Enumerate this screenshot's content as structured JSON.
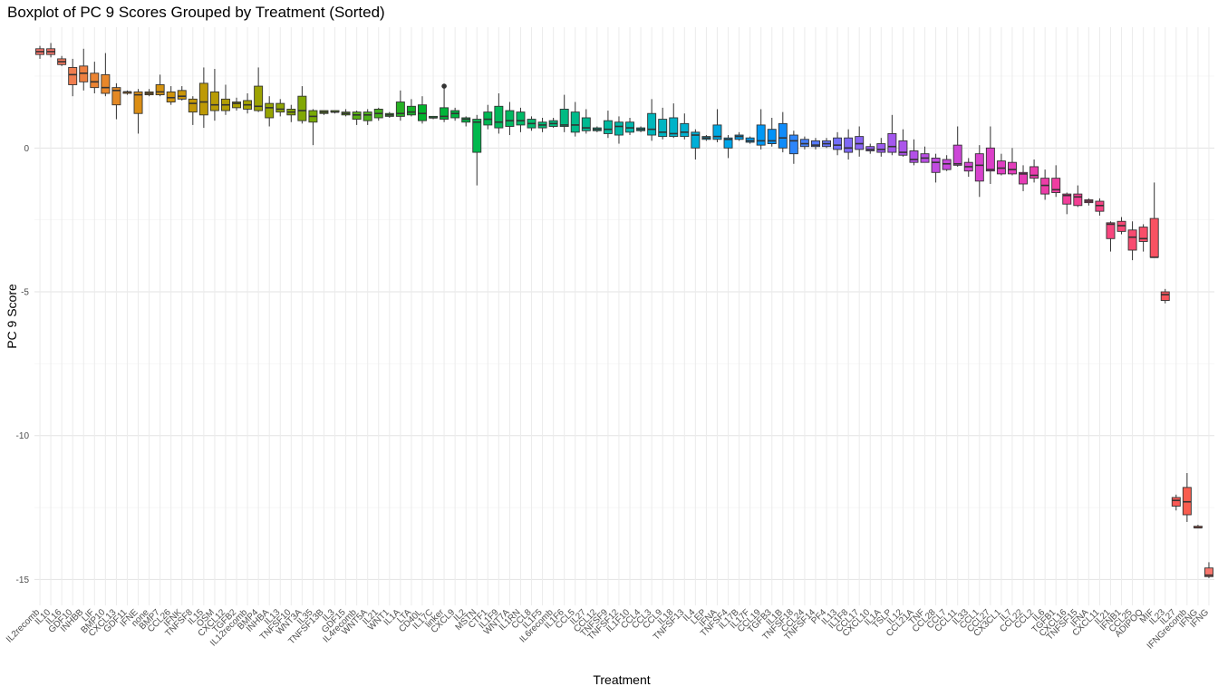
{
  "chart_data": {
    "type": "boxplot",
    "title": "Boxplot of PC 9 Scores Grouped by Treatment (Sorted)",
    "xlabel": "Treatment",
    "ylabel": "PC 9 Score",
    "ylim": [
      -15.9,
      4.2
    ],
    "yticks": [
      -15,
      -10,
      -5,
      0
    ],
    "grid": true,
    "legend": "none",
    "fields": [
      "name",
      "whisker_low",
      "q1",
      "median",
      "q3",
      "whisker_high",
      "color"
    ],
    "boxes": [
      [
        "IL2recomb",
        3.1,
        3.25,
        3.35,
        3.45,
        3.55,
        "#F8766D"
      ],
      [
        "IL10",
        3.15,
        3.25,
        3.35,
        3.45,
        3.65,
        "#F7766A"
      ],
      [
        "IL16",
        2.85,
        2.9,
        3.0,
        3.1,
        3.2,
        "#F47A5F"
      ],
      [
        "GDF10",
        1.8,
        2.2,
        2.55,
        2.8,
        3.1,
        "#F07E50"
      ],
      [
        "INHBB",
        2.0,
        2.3,
        2.6,
        2.85,
        3.45,
        "#EE8041"
      ],
      [
        "LIF",
        1.9,
        2.1,
        2.3,
        2.6,
        3.0,
        "#EC8432"
      ],
      [
        "BMP10",
        1.8,
        1.9,
        2.1,
        2.55,
        3.3,
        "#E8872A"
      ],
      [
        "CXCL13",
        1.0,
        1.5,
        2.0,
        2.1,
        2.25,
        "#E48924"
      ],
      [
        "GDF11",
        1.85,
        1.9,
        1.95,
        1.95,
        2.0,
        "#E08B18"
      ],
      [
        "IFNE",
        0.5,
        1.2,
        1.85,
        1.95,
        2.05,
        "#DB8E14"
      ],
      [
        "none",
        1.8,
        1.85,
        1.9,
        1.95,
        2.05,
        "#D89012"
      ],
      [
        "BMP7",
        1.8,
        1.85,
        1.95,
        2.2,
        2.55,
        "#D49210"
      ],
      [
        "CCL26",
        1.5,
        1.6,
        1.75,
        1.95,
        2.15,
        "#CF940C"
      ],
      [
        "IFNK",
        1.65,
        1.7,
        1.8,
        2.0,
        2.15,
        "#CA960A"
      ],
      [
        "TNFSF8",
        0.8,
        1.25,
        1.55,
        1.7,
        1.8,
        "#C49808"
      ],
      [
        "IL15",
        0.7,
        1.15,
        1.6,
        2.25,
        2.8,
        "#BE9A06"
      ],
      [
        "OSM",
        0.95,
        1.3,
        1.5,
        1.95,
        2.75,
        "#B89C05"
      ],
      [
        "CXCL12",
        1.15,
        1.3,
        1.5,
        1.7,
        2.2,
        "#B29E04"
      ],
      [
        "TGFB2",
        1.3,
        1.4,
        1.55,
        1.6,
        1.75,
        "#ABA003"
      ],
      [
        "IL12recomb",
        1.2,
        1.35,
        1.5,
        1.65,
        1.9,
        "#A4A102"
      ],
      [
        "BMP4",
        1.25,
        1.3,
        1.45,
        2.15,
        2.8,
        "#9DA302"
      ],
      [
        "INHBA",
        0.75,
        1.05,
        1.4,
        1.55,
        1.8,
        "#96A402"
      ],
      [
        "IL13",
        1.1,
        1.25,
        1.35,
        1.55,
        1.7,
        "#8FA603"
      ],
      [
        "TNFSF10",
        0.9,
        1.15,
        1.25,
        1.35,
        1.5,
        "#88A704"
      ],
      [
        "WNT3A",
        0.85,
        0.95,
        1.3,
        1.8,
        2.15,
        "#81A805"
      ],
      [
        "IL35",
        0.1,
        0.9,
        1.1,
        1.3,
        1.35,
        "#79AA07"
      ],
      [
        "TNFSF13B",
        1.15,
        1.2,
        1.25,
        1.3,
        1.3,
        "#71AB09"
      ],
      [
        "IL3",
        1.2,
        1.25,
        1.25,
        1.3,
        1.3,
        "#69AC0C"
      ],
      [
        "GDF15",
        1.1,
        1.15,
        1.2,
        1.25,
        1.35,
        "#60AD10"
      ],
      [
        "IL4recomb",
        0.8,
        1.0,
        1.15,
        1.25,
        1.3,
        "#57AE14"
      ],
      [
        "WNT5A",
        0.8,
        0.95,
        1.15,
        1.25,
        1.35,
        "#4DAF18"
      ],
      [
        "IL21",
        0.95,
        1.05,
        1.2,
        1.35,
        1.4,
        "#42B01C"
      ],
      [
        "WNT1",
        1.05,
        1.1,
        1.15,
        1.2,
        1.25,
        "#35B120"
      ],
      [
        "IL1A",
        0.95,
        1.1,
        1.2,
        1.6,
        2.0,
        "#27B224"
      ],
      [
        "LTA",
        1.1,
        1.15,
        1.25,
        1.45,
        1.7,
        "#16B328"
      ],
      [
        "CD40L",
        0.85,
        0.95,
        1.2,
        1.5,
        1.8,
        "#00B42D"
      ],
      [
        "IL17C",
        1.0,
        1.05,
        1.05,
        1.1,
        1.1,
        "#00B433"
      ],
      [
        "linker",
        0.9,
        1.0,
        1.1,
        1.4,
        2.15,
        "#00B53A"
      ],
      [
        "CXCL9",
        0.95,
        1.05,
        1.2,
        1.3,
        1.4,
        "#00B640"
      ],
      [
        "IL2",
        0.75,
        0.9,
        1.0,
        1.05,
        1.1,
        "#00B746"
      ],
      [
        "MSTN",
        -1.3,
        -0.15,
        0.9,
        1.0,
        1.15,
        "#00B84D"
      ],
      [
        "CTF1",
        0.65,
        0.8,
        1.0,
        1.25,
        1.5,
        "#00B853"
      ],
      [
        "IL1F9",
        0.5,
        0.7,
        0.9,
        1.45,
        1.9,
        "#00B95A"
      ],
      [
        "WNT7A",
        0.45,
        0.75,
        0.95,
        1.3,
        1.6,
        "#00B960"
      ],
      [
        "IL1RN",
        0.55,
        0.8,
        0.95,
        1.25,
        1.4,
        "#00BA67"
      ],
      [
        "CCL8",
        0.6,
        0.7,
        0.85,
        1.0,
        1.1,
        "#00BA6E"
      ],
      [
        "IL1F5",
        0.55,
        0.7,
        0.8,
        0.9,
        1.05,
        "#00BA75"
      ],
      [
        "IL6recomb",
        0.7,
        0.75,
        0.85,
        0.95,
        1.05,
        "#00BA7C"
      ],
      [
        "IL1F6",
        0.55,
        0.75,
        0.8,
        1.35,
        1.85,
        "#00BA83"
      ],
      [
        "CCL5",
        0.4,
        0.55,
        0.8,
        1.25,
        1.6,
        "#00BA8A"
      ],
      [
        "IL27",
        0.5,
        0.6,
        0.7,
        1.05,
        1.35,
        "#00BA91"
      ],
      [
        "CCL12",
        0.55,
        0.6,
        0.65,
        0.7,
        0.75,
        "#00B998"
      ],
      [
        "TNFSF9",
        0.35,
        0.5,
        0.65,
        0.95,
        1.3,
        "#00B99F"
      ],
      [
        "TNFSF12",
        0.15,
        0.45,
        0.75,
        0.9,
        1.1,
        "#00B8A6"
      ],
      [
        "IL1F10",
        0.45,
        0.55,
        0.7,
        0.9,
        1.05,
        "#00B8AD"
      ],
      [
        "CCL4",
        0.55,
        0.6,
        0.65,
        0.7,
        0.75,
        "#00B7B4"
      ],
      [
        "CCL3",
        0.25,
        0.45,
        0.65,
        1.2,
        1.7,
        "#00B6BB"
      ],
      [
        "CCL9",
        0.3,
        0.4,
        0.55,
        1.0,
        1.4,
        "#00B5C2"
      ],
      [
        "IL18",
        0.35,
        0.4,
        0.5,
        1.05,
        1.55,
        "#00B3C9"
      ],
      [
        "TNFSF13",
        0.3,
        0.4,
        0.55,
        0.85,
        1.2,
        "#00B1D0"
      ],
      [
        "IL4",
        -0.4,
        0.0,
        0.45,
        0.55,
        0.65,
        "#00AFD7"
      ],
      [
        "LEP",
        0.25,
        0.3,
        0.35,
        0.4,
        0.45,
        "#00ACDD"
      ],
      [
        "IFNA",
        0.2,
        0.3,
        0.4,
        0.8,
        1.35,
        "#00A9E3"
      ],
      [
        "TNFSF4",
        -0.35,
        0.0,
        0.3,
        0.35,
        0.45,
        "#00A5E9"
      ],
      [
        "IL17B",
        0.25,
        0.3,
        0.4,
        0.45,
        0.55,
        "#00A1EE"
      ],
      [
        "IL17F",
        0.15,
        0.2,
        0.25,
        0.35,
        0.4,
        "#009DF3"
      ],
      [
        "CCL19",
        -0.05,
        0.1,
        0.25,
        0.8,
        1.35,
        "#0098F6"
      ],
      [
        "TGFB3",
        0.05,
        0.15,
        0.25,
        0.65,
        1.05,
        "#0092F8"
      ],
      [
        "IL1B",
        -0.15,
        0.0,
        0.35,
        0.85,
        1.25,
        "#108CF9"
      ],
      [
        "TNFSF18",
        -0.55,
        -0.2,
        0.25,
        0.45,
        0.6,
        "#2E86FA"
      ],
      [
        "CCL24",
        -0.05,
        0.05,
        0.15,
        0.3,
        0.4,
        "#447FFA"
      ],
      [
        "TNFSF14",
        -0.05,
        0.05,
        0.1,
        0.25,
        0.35,
        "#5679FA"
      ],
      [
        "PF4",
        0.0,
        0.05,
        0.15,
        0.25,
        0.35,
        "#6573F9"
      ],
      [
        "IL13",
        -0.25,
        -0.05,
        0.1,
        0.35,
        0.55,
        "#726EF8"
      ],
      [
        "IL1F8",
        -0.4,
        -0.15,
        0.0,
        0.35,
        0.65,
        "#7E69F6"
      ],
      [
        "CCL17",
        -0.3,
        -0.05,
        0.15,
        0.4,
        0.75,
        "#8965F4"
      ],
      [
        "CXCL10",
        -0.2,
        -0.1,
        -0.05,
        0.05,
        0.15,
        "#935FF2"
      ],
      [
        "IL1A",
        -0.3,
        -0.15,
        -0.05,
        0.15,
        0.35,
        "#9C5BF0"
      ],
      [
        "TSLP",
        -0.25,
        -0.15,
        0.05,
        0.5,
        1.15,
        "#A457EE"
      ],
      [
        "IL12",
        -0.3,
        -0.25,
        -0.15,
        0.25,
        0.65,
        "#AC54EB"
      ],
      [
        "CCL21A",
        -0.6,
        -0.5,
        -0.4,
        -0.1,
        0.3,
        "#B351E8"
      ],
      [
        "TNF",
        -0.45,
        -0.5,
        -0.35,
        -0.2,
        0.05,
        "#BA4EE4"
      ],
      [
        "CCL28",
        -1.2,
        -0.85,
        -0.5,
        -0.35,
        -0.2,
        "#C14BE0"
      ],
      [
        "CCL7",
        -0.8,
        -0.75,
        -0.55,
        -0.4,
        -0.25,
        "#C748DC"
      ],
      [
        "CCL11",
        -0.65,
        -0.6,
        -0.55,
        0.1,
        0.75,
        "#CC46D7"
      ],
      [
        "IL33",
        -1.0,
        -0.8,
        -0.65,
        -0.5,
        -0.35,
        "#D244D2"
      ],
      [
        "CCL1",
        -1.7,
        -1.15,
        -0.6,
        -0.2,
        0.1,
        "#D742CD"
      ],
      [
        "CCL27",
        -1.25,
        -0.8,
        -0.75,
        0.0,
        0.75,
        "#DB40C8"
      ],
      [
        "CX3CL1",
        -0.95,
        -0.9,
        -0.7,
        -0.45,
        -0.2,
        "#DF3FC2"
      ],
      [
        "IL7",
        -0.95,
        -0.9,
        -0.75,
        -0.5,
        0.0,
        "#E33EBC"
      ],
      [
        "CCL22",
        -1.5,
        -1.25,
        -0.9,
        -0.85,
        -0.6,
        "#E63EB6"
      ],
      [
        "CCL2",
        -1.2,
        -1.05,
        -0.95,
        -0.65,
        -0.4,
        "#EA3DAF"
      ],
      [
        "IL6",
        -1.8,
        -1.6,
        -1.3,
        -1.05,
        -0.75,
        "#EC3DA8"
      ],
      [
        "TGFB1",
        -1.7,
        -1.55,
        -1.45,
        -1.05,
        -0.6,
        "#EF3DA1"
      ],
      [
        "CXCL16",
        -2.3,
        -1.95,
        -1.65,
        -1.6,
        -1.55,
        "#F13E9A"
      ],
      [
        "TNFSF15",
        -2.05,
        -2.0,
        -1.7,
        -1.6,
        -1.3,
        "#F33F93"
      ],
      [
        "IFNA",
        -2.0,
        -1.9,
        -1.85,
        -1.8,
        -1.75,
        "#F5418C"
      ],
      [
        "CXCL11",
        -2.35,
        -2.2,
        -2.0,
        -1.85,
        -1.75,
        "#F64385"
      ],
      [
        "IL21",
        -3.6,
        -3.15,
        -2.65,
        -2.6,
        -2.55,
        "#F7457E"
      ],
      [
        "IFNB1",
        -3.0,
        -2.9,
        -2.7,
        -2.55,
        -2.4,
        "#F84877"
      ],
      [
        "CCL25",
        -3.9,
        -3.55,
        -3.1,
        -2.85,
        -2.55,
        "#F84B70"
      ],
      [
        "ADIPOQ",
        -3.6,
        -3.25,
        -3.15,
        -2.75,
        -2.65,
        "#F94E69"
      ],
      [
        "MIF",
        -3.8,
        -3.8,
        -3.8,
        -2.45,
        -1.2,
        "#F95262"
      ],
      [
        "IL23",
        -5.4,
        -5.3,
        -5.1,
        -5.0,
        -4.9,
        "#F9555C"
      ],
      [
        "IL27",
        -12.6,
        -12.45,
        -12.25,
        -12.15,
        -12.05,
        "#F95955"
      ],
      [
        "IFNGrecomb",
        -13.0,
        -12.75,
        -12.3,
        -11.8,
        -11.3,
        "#F95D4F"
      ],
      [
        "IFNG",
        -13.2,
        -13.2,
        -13.2,
        -13.15,
        -13.1,
        "#F96149"
      ],
      [
        "IFNG",
        -14.95,
        -14.9,
        -14.85,
        -14.6,
        -14.4,
        "#F8766D"
      ]
    ],
    "outliers": [
      {
        "box": 37,
        "value": 2.15
      }
    ],
    "categories_shown": [
      "IL2recomb",
      "IL10",
      "IL16",
      "GDF10",
      "INHBB",
      "LIF",
      "BMP10",
      "CXCL13",
      "GDF11",
      "IFNE",
      "none",
      "BMP7",
      "CCL26",
      "IFNK",
      "TNFSF8",
      "IL15",
      "OSM",
      "CXCL12",
      "TGFB2",
      "IL12recomb",
      "BMP4",
      "INHBA",
      "IL13",
      "TNFSF10",
      "WNT3A",
      "IL35",
      "TNFSF13B",
      "IL3",
      "GDF15",
      "IL4recomb",
      "WNT5A",
      "IL21",
      "WNT1",
      "IL1A",
      "LTA",
      "CD40L",
      "IL17C",
      "linker",
      "CXCL9",
      "IL2",
      "MSTN",
      "CTF1",
      "IL1F9",
      "WNT7A",
      "IL1RN",
      "CCL8",
      "IL1F5",
      "IL6recomb",
      "IL1F6",
      "CCL5",
      "IL27",
      "CCL12",
      "TNFSF9",
      "TNFSF12",
      "IL1F10",
      "CCL4",
      "CCL3",
      "CCL9",
      "IL18",
      "TNFSF13",
      "IL4",
      "LEP",
      "IFNA",
      "TNFSF4",
      "IL17B",
      "IL17F",
      "CCL19",
      "TGFB3",
      "IL1B",
      "TNFSF18",
      "CCL24",
      "TNFSF14",
      "PF4",
      "IL13",
      "IL1F8",
      "CCL17",
      "CXCL10",
      "IL1A",
      "TSLP",
      "IL12",
      "CCL21A",
      "TNF",
      "CCL28",
      "CCL7",
      "CCL11",
      "IL33",
      "CCL1",
      "CCL27",
      "CX3CL1",
      "IL7",
      "CCL22",
      "CCL2",
      "IL6",
      "TGFB1",
      "CXCL16",
      "TNFSF15",
      "IFNA",
      "CXCL11",
      "IL21",
      "IFNB1",
      "CCL25",
      "ADIPOQ",
      "MIF",
      "IL23",
      "IL27",
      "IFNGrecomb",
      "IFNG",
      "IFNG"
    ]
  }
}
